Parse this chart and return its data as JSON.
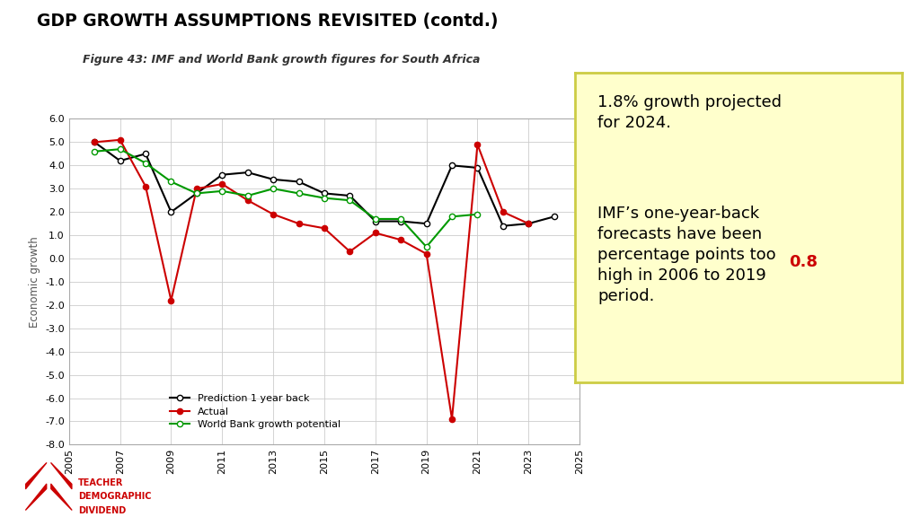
{
  "title": "GDP GROWTH ASSUMPTIONS REVISITED (contd.)",
  "subtitle": "Figure 43: IMF and World Bank growth figures for South Africa",
  "ylabel": "Economic growth",
  "xlim": [
    2005,
    2025
  ],
  "ylim": [
    -8.0,
    6.0
  ],
  "yticks": [
    -8.0,
    -7.0,
    -6.0,
    -5.0,
    -4.0,
    -3.0,
    -2.0,
    -1.0,
    0.0,
    1.0,
    2.0,
    3.0,
    4.0,
    5.0,
    6.0
  ],
  "xticks": [
    2005,
    2007,
    2009,
    2011,
    2013,
    2015,
    2017,
    2019,
    2021,
    2023,
    2025
  ],
  "prediction_x": [
    2006,
    2007,
    2008,
    2009,
    2010,
    2011,
    2012,
    2013,
    2014,
    2015,
    2016,
    2017,
    2018,
    2019,
    2020,
    2021,
    2022,
    2023,
    2024
  ],
  "prediction_y": [
    5.0,
    4.2,
    4.5,
    2.0,
    2.8,
    3.6,
    3.7,
    3.4,
    3.3,
    2.8,
    2.7,
    1.6,
    1.6,
    1.5,
    4.0,
    3.9,
    1.4,
    1.5,
    1.8
  ],
  "actual_x": [
    2006,
    2007,
    2008,
    2009,
    2010,
    2011,
    2012,
    2013,
    2014,
    2015,
    2016,
    2017,
    2018,
    2019,
    2020,
    2021,
    2022,
    2023
  ],
  "actual_y": [
    5.0,
    5.1,
    3.1,
    -1.8,
    3.0,
    3.2,
    2.5,
    1.9,
    1.5,
    1.3,
    0.3,
    1.1,
    0.8,
    0.2,
    -6.9,
    4.9,
    2.0,
    1.5
  ],
  "worldbank_x": [
    2006,
    2007,
    2008,
    2009,
    2010,
    2011,
    2012,
    2013,
    2014,
    2015,
    2016,
    2017,
    2018,
    2019,
    2020,
    2021
  ],
  "worldbank_y": [
    4.6,
    4.7,
    4.1,
    3.3,
    2.8,
    2.9,
    2.7,
    3.0,
    2.8,
    2.6,
    2.5,
    1.7,
    1.7,
    0.5,
    1.8,
    1.9
  ],
  "box_bg_color": "#ffffcc",
  "box_border_color": "#cccc44",
  "legend_labels": [
    "Prediction 1 year back",
    "Actual",
    "World Bank growth potential"
  ],
  "bg_color": "#ffffff",
  "grid_color": "#cccccc",
  "prediction_color": "#000000",
  "actual_color": "#cc0000",
  "worldbank_color": "#009900",
  "highlight_color": "#cc0000",
  "text_color": "#000000"
}
